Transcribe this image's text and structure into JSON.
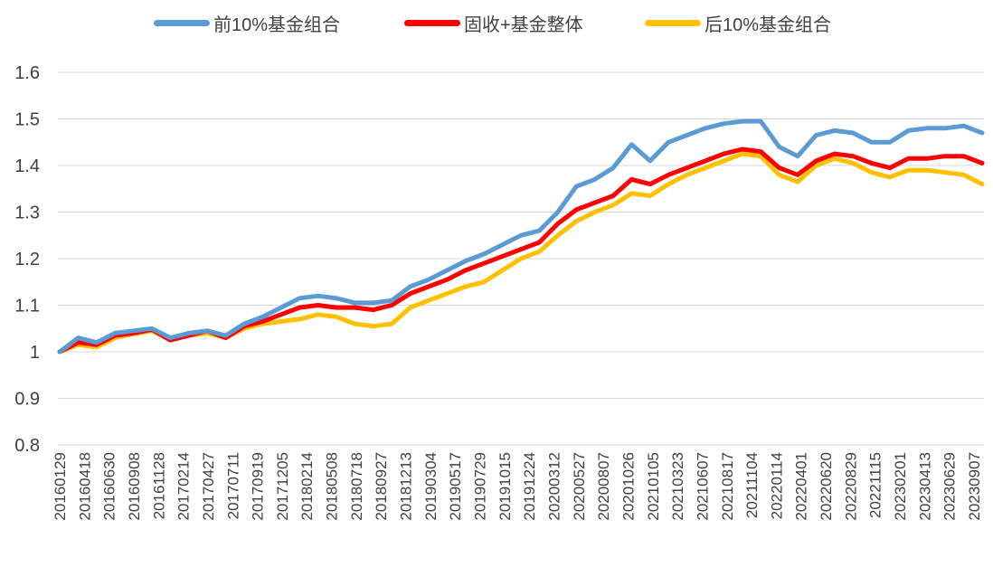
{
  "chart_data": {
    "type": "line",
    "legend_position": "top",
    "grid": true,
    "ylim": [
      0.8,
      1.6
    ],
    "yticks": [
      "0.8",
      "0.9",
      "1",
      "1.1",
      "1.2",
      "1.3",
      "1.4",
      "1.5",
      "1.6"
    ],
    "x_tick_labels": [
      "20160129",
      "20160418",
      "20160630",
      "20160908",
      "20161128",
      "20170214",
      "20170427",
      "20170711",
      "20170919",
      "20171205",
      "20180214",
      "20180508",
      "20180718",
      "20180927",
      "20181213",
      "20190304",
      "20190517",
      "20190729",
      "20191015",
      "20191224",
      "20200312",
      "20200527",
      "20200807",
      "20201026",
      "20210105",
      "20210323",
      "20210607",
      "20210817",
      "20211104",
      "20220114",
      "20220401",
      "20220620",
      "20220829",
      "20221115",
      "20230201",
      "20230413",
      "20230629",
      "20230907"
    ],
    "series": [
      {
        "name": "前10%基金组合",
        "color": "#5B9BD5",
        "values": [
          1.0,
          1.03,
          1.02,
          1.04,
          1.045,
          1.05,
          1.03,
          1.04,
          1.045,
          1.035,
          1.06,
          1.075,
          1.095,
          1.115,
          1.12,
          1.115,
          1.105,
          1.105,
          1.11,
          1.14,
          1.155,
          1.175,
          1.195,
          1.21,
          1.23,
          1.25,
          1.26,
          1.3,
          1.355,
          1.37,
          1.395,
          1.445,
          1.41,
          1.45,
          1.465,
          1.48,
          1.49,
          1.495,
          1.495,
          1.44,
          1.42,
          1.465,
          1.475,
          1.47,
          1.45,
          1.45,
          1.475,
          1.48,
          1.48,
          1.485,
          1.47
        ]
      },
      {
        "name": "固收+基金整体",
        "color": "#FF0000",
        "values": [
          1.0,
          1.02,
          1.015,
          1.035,
          1.04,
          1.048,
          1.025,
          1.035,
          1.045,
          1.03,
          1.055,
          1.065,
          1.08,
          1.095,
          1.1,
          1.095,
          1.095,
          1.09,
          1.1,
          1.125,
          1.14,
          1.155,
          1.175,
          1.19,
          1.205,
          1.22,
          1.235,
          1.275,
          1.305,
          1.32,
          1.335,
          1.37,
          1.36,
          1.38,
          1.395,
          1.41,
          1.425,
          1.435,
          1.43,
          1.395,
          1.38,
          1.41,
          1.425,
          1.42,
          1.405,
          1.395,
          1.415,
          1.415,
          1.42,
          1.42,
          1.405
        ]
      },
      {
        "name": "后10%基金组合",
        "color": "#FFC000",
        "values": [
          1.0,
          1.015,
          1.01,
          1.03,
          1.038,
          1.045,
          1.025,
          1.035,
          1.04,
          1.03,
          1.05,
          1.06,
          1.065,
          1.07,
          1.08,
          1.075,
          1.06,
          1.055,
          1.06,
          1.095,
          1.11,
          1.125,
          1.14,
          1.15,
          1.175,
          1.2,
          1.215,
          1.25,
          1.28,
          1.3,
          1.315,
          1.34,
          1.335,
          1.36,
          1.38,
          1.395,
          1.41,
          1.425,
          1.42,
          1.38,
          1.365,
          1.4,
          1.415,
          1.405,
          1.385,
          1.375,
          1.39,
          1.39,
          1.385,
          1.38,
          1.36
        ]
      }
    ]
  }
}
